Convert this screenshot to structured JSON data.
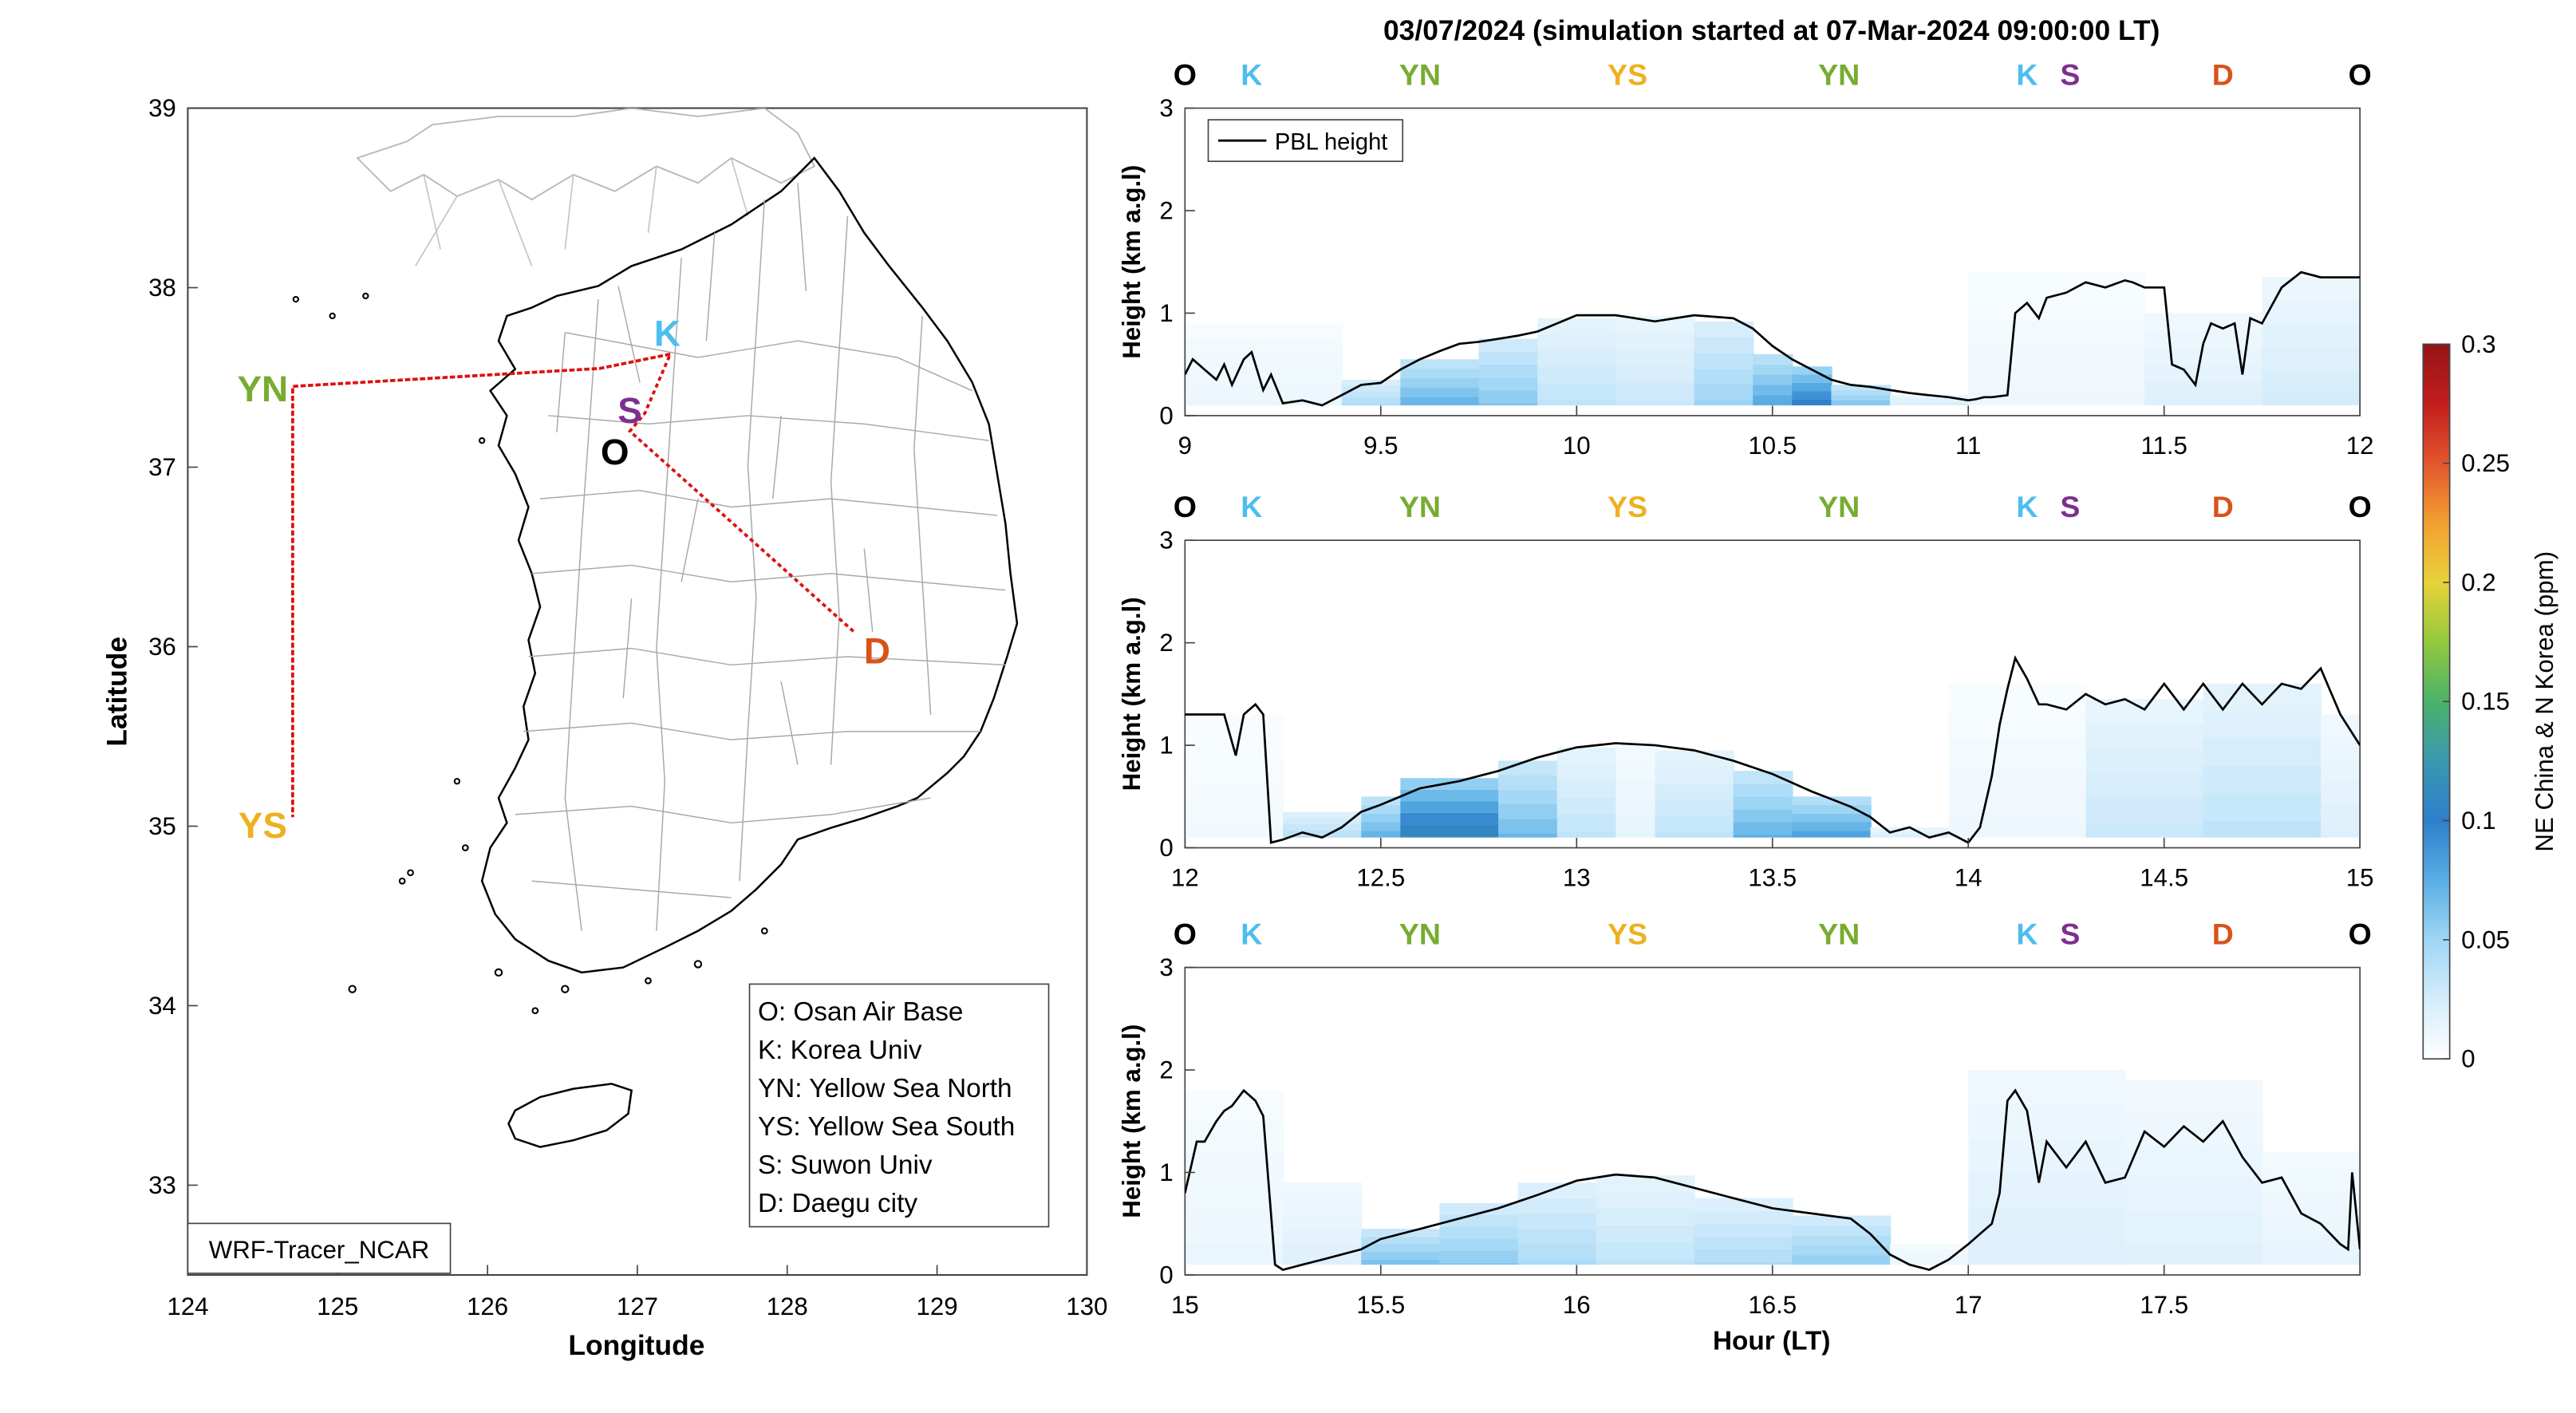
{
  "title": "03/07/2024 (simulation started at 07-Mar-2024 09:00:00 LT)",
  "colors": {
    "O": "#000000",
    "K": "#4DBEEE",
    "YN": "#77AC30",
    "YS": "#EDB120",
    "S": "#7E2F8E",
    "D": "#D95319",
    "route": "#DD1111",
    "pbl": "#000000",
    "colormap": [
      "#ffffff",
      "#d4ecfb",
      "#9fd6f5",
      "#5aaee4",
      "#2e7fcb",
      "#3b97b0",
      "#4bb26a",
      "#93c93d",
      "#e8d23a",
      "#f2a032",
      "#e3562d",
      "#c21d1d",
      "#951414"
    ]
  },
  "chart_data": [
    {
      "type": "map",
      "xlabel": "Longitude",
      "ylabel": "Latitude",
      "xlim": [
        124,
        130
      ],
      "ylim": [
        32.5,
        39
      ],
      "xticks": [
        "124",
        "125",
        "126",
        "127",
        "128",
        "129",
        "130"
      ],
      "yticks": [
        "33",
        "34",
        "35",
        "36",
        "37",
        "38",
        "39"
      ],
      "sites": [
        {
          "code": "K",
          "lon": 127.2,
          "lat": 37.75
        },
        {
          "code": "S",
          "lon": 126.95,
          "lat": 37.32
        },
        {
          "code": "O",
          "lon": 126.85,
          "lat": 37.09
        },
        {
          "code": "D",
          "lon": 128.6,
          "lat": 35.98
        },
        {
          "code": "YN",
          "lon": 124.5,
          "lat": 37.44
        },
        {
          "code": "YS",
          "lon": 124.5,
          "lat": 35.01
        }
      ],
      "route": [
        [
          127.22,
          37.63
        ],
        [
          126.75,
          37.55
        ],
        [
          124.7,
          37.45
        ],
        [
          124.7,
          35.05
        ],
        [
          124.7,
          37.45
        ],
        [
          126.75,
          37.55
        ],
        [
          127.22,
          37.63
        ],
        [
          127.05,
          37.3
        ],
        [
          126.95,
          37.2
        ],
        [
          128.45,
          36.08
        ]
      ],
      "legend": [
        "O: Osan Air Base",
        "K: Korea Univ",
        "YN: Yellow Sea North",
        "YS: Yellow Sea South",
        "S: Suwon Univ",
        "D: Daegu city"
      ],
      "model_label": "WRF-Tracer_NCAR"
    },
    {
      "type": "heatmap",
      "xlim": [
        9,
        12
      ],
      "xticks": [
        "9",
        "9.5",
        "10",
        "10.5",
        "11",
        "11.5",
        "12"
      ],
      "ylim": [
        0,
        3
      ],
      "yticks": [
        "0",
        "1",
        "2",
        "3"
      ],
      "ylabel": "Height (km a.g.l)",
      "legend": [
        "PBL height"
      ],
      "site_sequence": [
        {
          "code": "O",
          "x": 9.0
        },
        {
          "code": "K",
          "x": 9.17
        },
        {
          "code": "YN",
          "x": 9.6
        },
        {
          "code": "YS",
          "x": 10.13
        },
        {
          "code": "YN",
          "x": 10.67
        },
        {
          "code": "K",
          "x": 11.15
        },
        {
          "code": "S",
          "x": 11.26
        },
        {
          "code": "D",
          "x": 11.65
        },
        {
          "code": "O",
          "x": 12.0
        }
      ],
      "pbl_height": {
        "x": [
          9.0,
          9.02,
          9.05,
          9.08,
          9.1,
          9.12,
          9.15,
          9.17,
          9.2,
          9.22,
          9.25,
          9.3,
          9.35,
          9.4,
          9.45,
          9.5,
          9.55,
          9.6,
          9.65,
          9.7,
          9.75,
          9.8,
          9.85,
          9.9,
          9.95,
          10.0,
          10.1,
          10.2,
          10.3,
          10.4,
          10.45,
          10.5,
          10.55,
          10.6,
          10.65,
          10.7,
          10.75,
          10.8,
          10.85,
          10.9,
          10.95,
          11.0,
          11.02,
          11.04,
          11.06,
          11.1,
          11.12,
          11.15,
          11.18,
          11.2,
          11.25,
          11.3,
          11.35,
          11.4,
          11.42,
          11.45,
          11.5,
          11.52,
          11.55,
          11.58,
          11.6,
          11.62,
          11.65,
          11.68,
          11.7,
          11.72,
          11.75,
          11.8,
          11.85,
          11.9,
          11.95,
          12.0
        ],
        "y": [
          0.4,
          0.55,
          0.45,
          0.35,
          0.5,
          0.3,
          0.55,
          0.62,
          0.25,
          0.4,
          0.12,
          0.15,
          0.1,
          0.2,
          0.3,
          0.32,
          0.45,
          0.55,
          0.63,
          0.7,
          0.72,
          0.75,
          0.78,
          0.82,
          0.9,
          0.98,
          0.98,
          0.92,
          0.98,
          0.95,
          0.85,
          0.68,
          0.55,
          0.45,
          0.35,
          0.3,
          0.28,
          0.25,
          0.22,
          0.2,
          0.18,
          0.15,
          0.16,
          0.18,
          0.18,
          0.2,
          1.0,
          1.1,
          0.95,
          1.15,
          1.2,
          1.3,
          1.25,
          1.32,
          1.3,
          1.25,
          1.25,
          0.5,
          0.45,
          0.3,
          0.7,
          0.9,
          0.85,
          0.9,
          0.4,
          0.95,
          0.9,
          1.25,
          1.4,
          1.35,
          1.35,
          1.35
        ]
      },
      "tracer_columns": [
        {
          "x0": 9.0,
          "x1": 9.4,
          "top": 0.9,
          "c": 0.012
        },
        {
          "x0": 9.4,
          "x1": 9.55,
          "top": 0.35,
          "c": 0.05
        },
        {
          "x0": 9.55,
          "x1": 9.75,
          "top": 0.55,
          "c": 0.078
        },
        {
          "x0": 9.75,
          "x1": 9.9,
          "top": 0.75,
          "c": 0.062
        },
        {
          "x0": 9.9,
          "x1": 10.1,
          "top": 0.95,
          "c": 0.035
        },
        {
          "x0": 10.1,
          "x1": 10.3,
          "top": 0.97,
          "c": 0.03
        },
        {
          "x0": 10.3,
          "x1": 10.45,
          "top": 0.92,
          "c": 0.052
        },
        {
          "x0": 10.45,
          "x1": 10.55,
          "top": 0.6,
          "c": 0.085
        },
        {
          "x0": 10.55,
          "x1": 10.65,
          "top": 0.48,
          "c": 0.115
        },
        {
          "x0": 10.65,
          "x1": 10.8,
          "top": 0.3,
          "c": 0.075
        },
        {
          "x0": 10.8,
          "x1": 11.0,
          "top": 0.2,
          "c": 0.03
        },
        {
          "x0": 11.0,
          "x1": 11.45,
          "top": 1.4,
          "c": 0.01
        },
        {
          "x0": 11.45,
          "x1": 11.75,
          "top": 1.0,
          "c": 0.02
        },
        {
          "x0": 11.75,
          "x1": 12.0,
          "top": 1.35,
          "c": 0.025
        }
      ]
    },
    {
      "type": "heatmap",
      "xlim": [
        12,
        15
      ],
      "xticks": [
        "12",
        "12.5",
        "13",
        "13.5",
        "14",
        "14.5",
        "15"
      ],
      "ylim": [
        0,
        3
      ],
      "yticks": [
        "0",
        "1",
        "2",
        "3"
      ],
      "ylabel": "Height (km a.g.l)",
      "site_sequence": [
        {
          "code": "O",
          "x": 12.0
        },
        {
          "code": "K",
          "x": 12.17
        },
        {
          "code": "YN",
          "x": 12.6
        },
        {
          "code": "YS",
          "x": 13.13
        },
        {
          "code": "YN",
          "x": 13.67
        },
        {
          "code": "K",
          "x": 14.15
        },
        {
          "code": "S",
          "x": 14.26
        },
        {
          "code": "D",
          "x": 14.65
        },
        {
          "code": "O",
          "x": 15.0
        }
      ],
      "pbl_height": {
        "x": [
          12.0,
          12.05,
          12.1,
          12.13,
          12.15,
          12.18,
          12.2,
          12.22,
          12.25,
          12.3,
          12.35,
          12.4,
          12.45,
          12.5,
          12.55,
          12.6,
          12.7,
          12.8,
          12.9,
          13.0,
          13.1,
          13.2,
          13.3,
          13.4,
          13.5,
          13.6,
          13.7,
          13.75,
          13.8,
          13.85,
          13.9,
          13.95,
          14.0,
          14.03,
          14.06,
          14.08,
          14.1,
          14.12,
          14.15,
          14.18,
          14.2,
          14.25,
          14.3,
          14.35,
          14.4,
          14.45,
          14.5,
          14.55,
          14.6,
          14.65,
          14.7,
          14.75,
          14.8,
          14.85,
          14.9,
          14.95,
          15.0
        ],
        "y": [
          1.3,
          1.3,
          1.3,
          0.9,
          1.3,
          1.4,
          1.3,
          0.05,
          0.08,
          0.15,
          0.1,
          0.2,
          0.35,
          0.42,
          0.5,
          0.58,
          0.65,
          0.75,
          0.88,
          0.98,
          1.02,
          1.0,
          0.95,
          0.85,
          0.72,
          0.55,
          0.4,
          0.3,
          0.15,
          0.2,
          0.1,
          0.15,
          0.05,
          0.2,
          0.7,
          1.2,
          1.55,
          1.85,
          1.65,
          1.4,
          1.4,
          1.35,
          1.5,
          1.4,
          1.45,
          1.35,
          1.6,
          1.35,
          1.6,
          1.35,
          1.6,
          1.4,
          1.6,
          1.55,
          1.75,
          1.3,
          1.0
        ]
      },
      "tracer_columns": [
        {
          "x0": 12.0,
          "x1": 12.25,
          "top": 1.3,
          "c": 0.008
        },
        {
          "x0": 12.25,
          "x1": 12.45,
          "top": 0.35,
          "c": 0.045
        },
        {
          "x0": 12.45,
          "x1": 12.55,
          "top": 0.5,
          "c": 0.08
        },
        {
          "x0": 12.55,
          "x1": 12.8,
          "top": 0.68,
          "c": 0.12
        },
        {
          "x0": 12.8,
          "x1": 12.95,
          "top": 0.85,
          "c": 0.07
        },
        {
          "x0": 12.95,
          "x1": 13.1,
          "top": 0.98,
          "c": 0.035
        },
        {
          "x0": 13.1,
          "x1": 13.2,
          "top": 1.0,
          "c": 0.015
        },
        {
          "x0": 13.2,
          "x1": 13.4,
          "top": 0.95,
          "c": 0.035
        },
        {
          "x0": 13.4,
          "x1": 13.55,
          "top": 0.75,
          "c": 0.075
        },
        {
          "x0": 13.55,
          "x1": 13.75,
          "top": 0.5,
          "c": 0.09
        },
        {
          "x0": 13.75,
          "x1": 13.95,
          "top": 0.2,
          "c": 0.03
        },
        {
          "x0": 13.95,
          "x1": 14.3,
          "top": 1.6,
          "c": 0.01
        },
        {
          "x0": 14.3,
          "x1": 14.6,
          "top": 1.45,
          "c": 0.03
        },
        {
          "x0": 14.6,
          "x1": 14.9,
          "top": 1.6,
          "c": 0.035
        },
        {
          "x0": 14.9,
          "x1": 15.0,
          "top": 1.3,
          "c": 0.02
        }
      ]
    },
    {
      "type": "heatmap",
      "xlim": [
        15,
        18
      ],
      "xticks": [
        "15",
        "15.5",
        "16",
        "16.5",
        "17",
        "17.5"
      ],
      "ylim": [
        0,
        3
      ],
      "yticks": [
        "0",
        "1",
        "2",
        "3"
      ],
      "ylabel": "Height (km a.g.l)",
      "xlabel": "Hour (LT)",
      "site_sequence": [
        {
          "code": "O",
          "x": 15.0
        },
        {
          "code": "K",
          "x": 15.17
        },
        {
          "code": "YN",
          "x": 15.6
        },
        {
          "code": "YS",
          "x": 16.13
        },
        {
          "code": "YN",
          "x": 16.67
        },
        {
          "code": "K",
          "x": 17.15
        },
        {
          "code": "S",
          "x": 17.26
        },
        {
          "code": "D",
          "x": 17.65
        },
        {
          "code": "O",
          "x": 18.0
        }
      ],
      "pbl_height": {
        "x": [
          15.0,
          15.03,
          15.05,
          15.08,
          15.1,
          15.12,
          15.15,
          15.18,
          15.2,
          15.23,
          15.25,
          15.3,
          15.35,
          15.4,
          15.45,
          15.5,
          15.6,
          15.7,
          15.8,
          15.9,
          16.0,
          16.1,
          16.2,
          16.3,
          16.4,
          16.5,
          16.6,
          16.7,
          16.75,
          16.8,
          16.85,
          16.9,
          16.95,
          17.0,
          17.03,
          17.06,
          17.08,
          17.1,
          17.12,
          17.15,
          17.18,
          17.2,
          17.25,
          17.3,
          17.35,
          17.4,
          17.45,
          17.5,
          17.55,
          17.6,
          17.65,
          17.7,
          17.75,
          17.8,
          17.85,
          17.9,
          17.95,
          17.97,
          17.98,
          18.0
        ],
        "y": [
          0.8,
          1.3,
          1.3,
          1.5,
          1.6,
          1.65,
          1.8,
          1.7,
          1.55,
          0.1,
          0.05,
          0.1,
          0.15,
          0.2,
          0.25,
          0.35,
          0.45,
          0.55,
          0.65,
          0.78,
          0.92,
          0.98,
          0.95,
          0.85,
          0.75,
          0.65,
          0.6,
          0.55,
          0.4,
          0.2,
          0.1,
          0.05,
          0.15,
          0.3,
          0.4,
          0.5,
          0.8,
          1.7,
          1.8,
          1.6,
          0.9,
          1.3,
          1.05,
          1.3,
          0.9,
          0.95,
          1.4,
          1.25,
          1.45,
          1.3,
          1.5,
          1.15,
          0.9,
          0.95,
          0.6,
          0.5,
          0.3,
          0.25,
          1.0,
          0.25
        ]
      },
      "tracer_columns": [
        {
          "x0": 15.0,
          "x1": 15.25,
          "top": 1.8,
          "c": 0.012
        },
        {
          "x0": 15.25,
          "x1": 15.45,
          "top": 0.9,
          "c": 0.02
        },
        {
          "x0": 15.45,
          "x1": 15.65,
          "top": 0.45,
          "c": 0.07
        },
        {
          "x0": 15.65,
          "x1": 15.85,
          "top": 0.7,
          "c": 0.06
        },
        {
          "x0": 15.85,
          "x1": 16.05,
          "top": 0.9,
          "c": 0.045
        },
        {
          "x0": 16.05,
          "x1": 16.3,
          "top": 0.97,
          "c": 0.035
        },
        {
          "x0": 16.3,
          "x1": 16.55,
          "top": 0.75,
          "c": 0.045
        },
        {
          "x0": 16.55,
          "x1": 16.8,
          "top": 0.58,
          "c": 0.06
        },
        {
          "x0": 16.8,
          "x1": 17.0,
          "top": 0.3,
          "c": 0.015
        },
        {
          "x0": 17.0,
          "x1": 17.4,
          "top": 2.0,
          "c": 0.02
        },
        {
          "x0": 17.4,
          "x1": 17.75,
          "top": 1.9,
          "c": 0.018
        },
        {
          "x0": 17.75,
          "x1": 18.0,
          "top": 1.2,
          "c": 0.015
        }
      ]
    }
  ],
  "colorbar": {
    "label": "NE China & N Korea (ppm)",
    "range": [
      0,
      0.3
    ],
    "ticks": [
      "0",
      "0.05",
      "0.1",
      "0.15",
      "0.2",
      "0.25",
      "0.3"
    ]
  }
}
